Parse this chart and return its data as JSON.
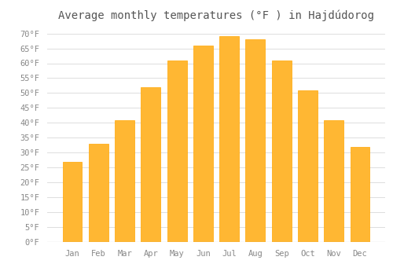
{
  "title": "Average monthly temperatures (°F ) in Hajdúdorog",
  "months": [
    "Jan",
    "Feb",
    "Mar",
    "Apr",
    "May",
    "Jun",
    "Jul",
    "Aug",
    "Sep",
    "Oct",
    "Nov",
    "Dec"
  ],
  "values": [
    27,
    33,
    41,
    52,
    61,
    66,
    69,
    68,
    61,
    51,
    41,
    32
  ],
  "bar_color": "#FFB733",
  "bar_edge_color": "#FFA500",
  "background_color": "#FFFFFF",
  "grid_color": "#DDDDDD",
  "ylim": [
    0,
    72
  ],
  "yticks": [
    0,
    5,
    10,
    15,
    20,
    25,
    30,
    35,
    40,
    45,
    50,
    55,
    60,
    65,
    70
  ],
  "title_fontsize": 10,
  "tick_fontsize": 7.5,
  "tick_font_color": "#888888",
  "title_color": "#555555"
}
